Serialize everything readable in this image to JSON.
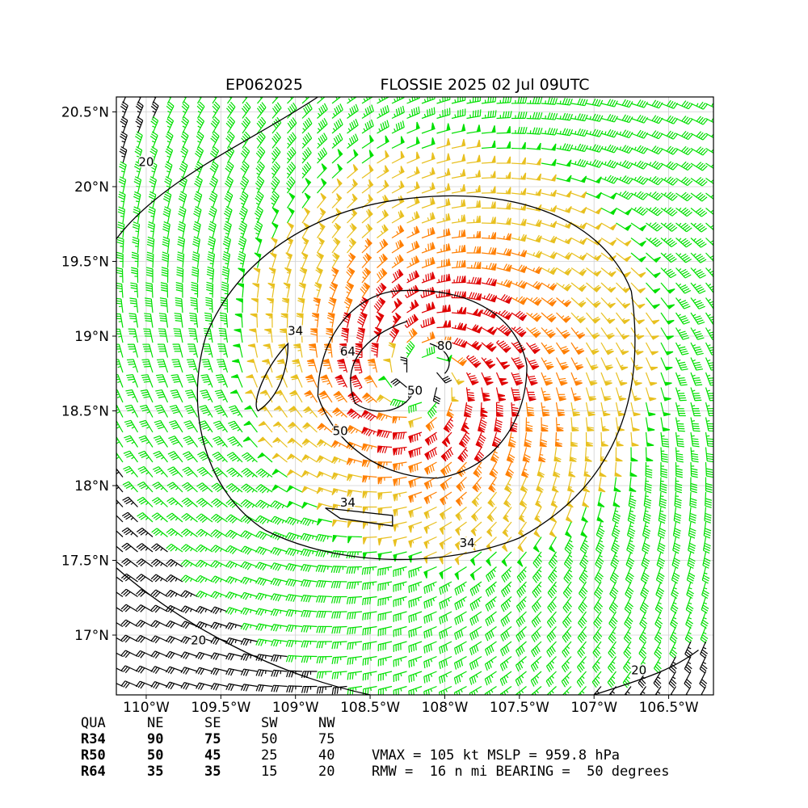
{
  "title": {
    "storm_id": "EP062025",
    "storm_info": "FLOSSIE 2025 02 Jul 09UTC"
  },
  "map": {
    "lon_range": [
      -110.2,
      -106.2
    ],
    "lat_range": [
      16.6,
      20.6
    ],
    "x_ticks": [
      {
        "value": -110.0,
        "label": "110°W"
      },
      {
        "value": -109.5,
        "label": "109.5°W"
      },
      {
        "value": -109.0,
        "label": "109°W"
      },
      {
        "value": -108.5,
        "label": "108.5°W"
      },
      {
        "value": -108.0,
        "label": "108°W"
      },
      {
        "value": -107.5,
        "label": "107.5°W"
      },
      {
        "value": -107.0,
        "label": "107°W"
      },
      {
        "value": -106.5,
        "label": "106.5°W"
      }
    ],
    "y_ticks": [
      {
        "value": 20.5,
        "label": "20.5°N"
      },
      {
        "value": 20.0,
        "label": "20°N"
      },
      {
        "value": 19.5,
        "label": "19.5°N"
      },
      {
        "value": 19.0,
        "label": "19°N"
      },
      {
        "value": 18.5,
        "label": "18.5°N"
      },
      {
        "value": 18.0,
        "label": "18°N"
      },
      {
        "value": 17.5,
        "label": "17.5°N"
      },
      {
        "value": 17.0,
        "label": "17°N"
      }
    ],
    "grid": true,
    "center": {
      "lon": -108.15,
      "lat": 18.72
    },
    "wind_colors": {
      "below_34": "#000000",
      "34_to_50": "#00e000",
      "50_to_64": "#e8c020",
      "64_to_80": "#ff7f00",
      "above_80": "#e00000"
    },
    "contour_labels": [
      {
        "text": "20",
        "lon": -110.0,
        "lat": 20.15
      },
      {
        "text": "20",
        "lon": -109.65,
        "lat": 16.95
      },
      {
        "text": "20",
        "lon": -106.7,
        "lat": 16.75
      },
      {
        "text": "34",
        "lon": -109.0,
        "lat": 19.02
      },
      {
        "text": "34",
        "lon": -108.65,
        "lat": 17.87
      },
      {
        "text": "34",
        "lon": -107.85,
        "lat": 17.6
      },
      {
        "text": "50",
        "lon": -108.7,
        "lat": 18.35
      },
      {
        "text": "50",
        "lon": -108.2,
        "lat": 18.62
      },
      {
        "text": "64",
        "lon": -108.65,
        "lat": 18.88
      },
      {
        "text": "80",
        "lon": -108.0,
        "lat": 18.92
      }
    ]
  },
  "table": {
    "header": [
      "QUA",
      "NE",
      "SE",
      "SW",
      "NW"
    ],
    "rows": [
      [
        "R34",
        "90",
        "75",
        "50",
        "75"
      ],
      [
        "R50",
        "50",
        "45",
        "25",
        "40"
      ],
      [
        "R64",
        "35",
        "35",
        "15",
        "20"
      ]
    ]
  },
  "stats": {
    "line1": "VMAX = 105 kt MSLP = 959.8 hPa",
    "line2": "RMW =  16 n mi BEARING =  50 degrees"
  }
}
